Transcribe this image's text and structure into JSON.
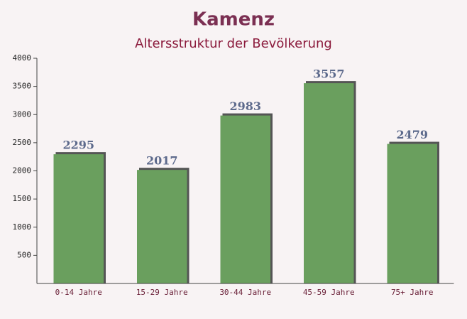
{
  "chart_data": {
    "type": "bar",
    "title": "Kamenz",
    "subtitle": "Altersstruktur der Bevölkerung",
    "categories": [
      "0-14 Jahre",
      "15-29 Jahre",
      "30-44 Jahre",
      "45-59 Jahre",
      "75+ Jahre"
    ],
    "values": [
      2295,
      2017,
      2983,
      3557,
      2479
    ],
    "color": "#6a9f5e",
    "ylim": [
      0,
      4000
    ],
    "yticks": [
      500,
      1000,
      1500,
      2000,
      2500,
      3000,
      3500,
      4000
    ],
    "grid": false
  }
}
